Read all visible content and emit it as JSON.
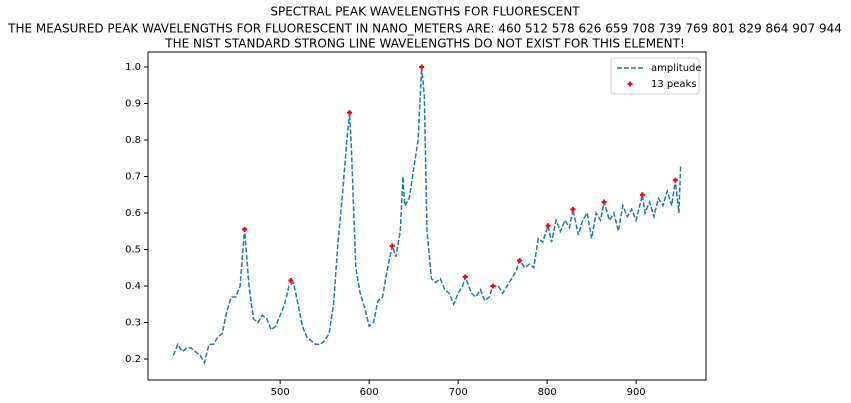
{
  "chart_data": {
    "type": "line",
    "title": "SPECTRAL PEAK WAVELENGTHS FOR FLUORESCENT",
    "subtitle": "THE MEASURED PEAK WAVELENGTHS FOR FLUORESCENT IN NANO_METERS ARE: 460 512 578 626 659 708 739 769 801 829 864 907 944",
    "annotations": [
      "THE NIST STANDARD STRONG LINE WAVELENGTHS DO NOT EXIST FOR THIS ELEMENT!"
    ],
    "xlim": [
      351.5,
      978.5
    ],
    "xticks": [
      500,
      600,
      700,
      800,
      900
    ],
    "ylim": [
      0.1425,
      1.041
    ],
    "yticks": [
      0.2,
      0.3,
      0.4,
      0.5,
      0.6,
      0.7,
      0.8,
      0.9,
      {
        "value": 1,
        "label": "1.0"
      }
    ],
    "legend": "upper right",
    "series": [
      {
        "name": "amplitude",
        "type": "line",
        "style": "dashed",
        "color": "#1f77b4",
        "x": [
          380,
          385,
          390,
          395,
          400,
          405,
          410,
          415,
          420,
          425,
          430,
          435,
          440,
          445,
          450,
          455,
          460,
          465,
          470,
          475,
          480,
          485,
          490,
          495,
          500,
          505,
          510,
          515,
          520,
          525,
          530,
          535,
          540,
          545,
          550,
          555,
          560,
          565,
          570,
          575,
          578,
          580,
          585,
          590,
          595,
          600,
          605,
          610,
          615,
          620,
          626,
          630,
          635,
          638,
          640,
          645,
          650,
          655,
          659,
          662,
          665,
          670,
          675,
          680,
          685,
          690,
          695,
          700,
          705,
          708,
          712,
          715,
          720,
          725,
          730,
          735,
          739,
          745,
          750,
          755,
          760,
          765,
          769,
          775,
          780,
          785,
          790,
          795,
          801,
          805,
          810,
          815,
          820,
          825,
          829,
          835,
          840,
          845,
          850,
          855,
          860,
          864,
          870,
          875,
          880,
          885,
          890,
          895,
          900,
          907,
          910,
          915,
          920,
          925,
          930,
          935,
          940,
          944,
          948,
          950
        ],
        "values": [
          0.21,
          0.24,
          0.22,
          0.23,
          0.23,
          0.22,
          0.21,
          0.19,
          0.24,
          0.24,
          0.26,
          0.27,
          0.33,
          0.37,
          0.37,
          0.4,
          0.555,
          0.4,
          0.31,
          0.3,
          0.32,
          0.31,
          0.28,
          0.29,
          0.32,
          0.35,
          0.4,
          0.41,
          0.35,
          0.29,
          0.26,
          0.25,
          0.24,
          0.24,
          0.25,
          0.27,
          0.35,
          0.52,
          0.65,
          0.8,
          0.875,
          0.78,
          0.45,
          0.38,
          0.34,
          0.29,
          0.3,
          0.36,
          0.37,
          0.44,
          0.51,
          0.48,
          0.55,
          0.7,
          0.62,
          0.64,
          0.72,
          0.8,
          1,
          0.92,
          0.55,
          0.42,
          0.41,
          0.42,
          0.39,
          0.38,
          0.35,
          0.38,
          0.4,
          0.425,
          0.4,
          0.38,
          0.37,
          0.39,
          0.36,
          0.37,
          0.4,
          0.4,
          0.38,
          0.4,
          0.42,
          0.44,
          0.47,
          0.45,
          0.46,
          0.45,
          0.53,
          0.52,
          0.565,
          0.52,
          0.58,
          0.55,
          0.58,
          0.56,
          0.61,
          0.54,
          0.58,
          0.6,
          0.53,
          0.6,
          0.58,
          0.63,
          0.58,
          0.6,
          0.55,
          0.62,
          0.59,
          0.61,
          0.58,
          0.65,
          0.6,
          0.63,
          0.59,
          0.64,
          0.62,
          0.66,
          0.62,
          0.69,
          0.6,
          0.73
        ]
      },
      {
        "name": "13 peaks",
        "type": "scatter",
        "color": "#ff0000",
        "x": [
          460,
          512,
          578,
          626,
          659,
          708,
          739,
          769,
          801,
          829,
          864,
          907,
          944
        ],
        "values": [
          0.555,
          0.415,
          0.875,
          0.51,
          1,
          0.425,
          0.4,
          0.47,
          0.565,
          0.61,
          0.63,
          0.65,
          0.69
        ]
      }
    ]
  }
}
